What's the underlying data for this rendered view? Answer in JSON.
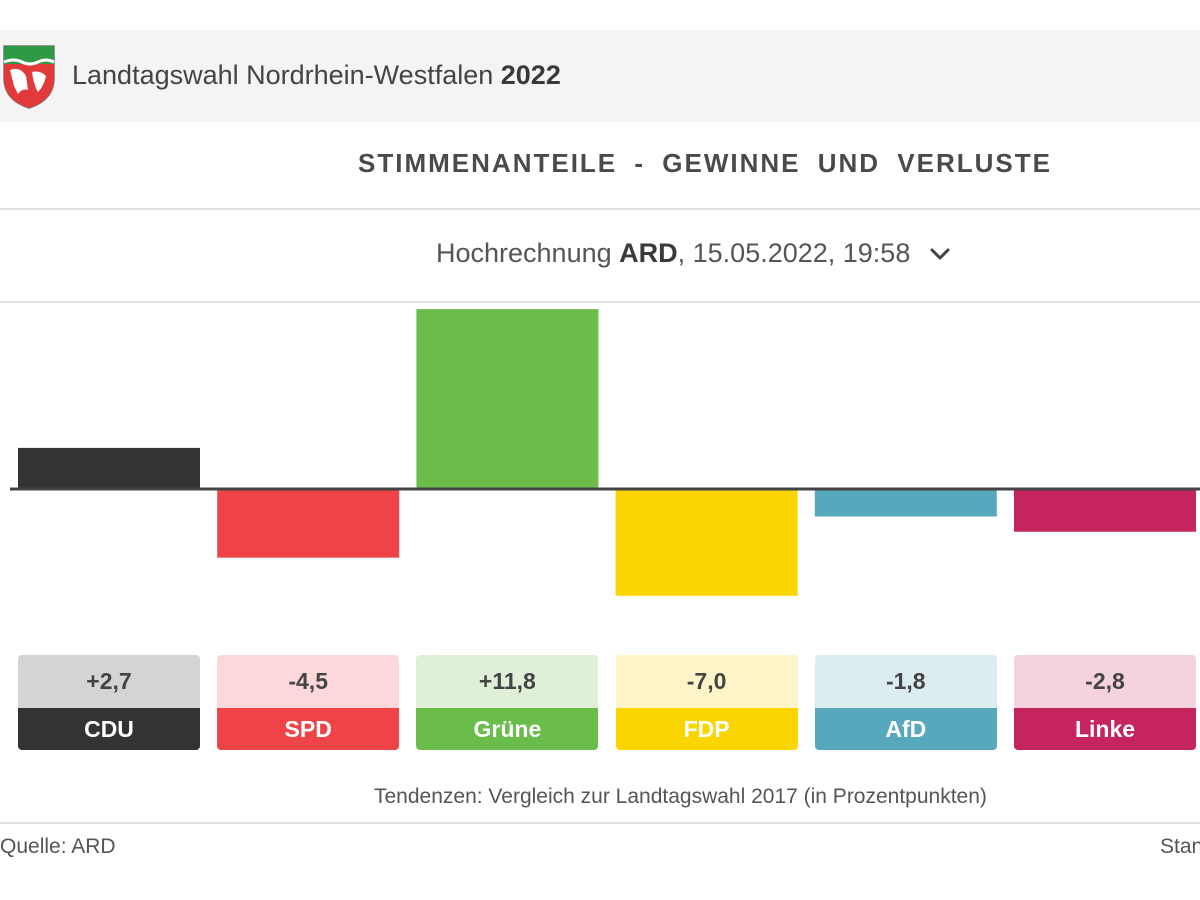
{
  "header": {
    "title": "Landtagswahl Nordrhein-Westfalen",
    "year": "2022",
    "crest_icon": "nrw-coat-of-arms-icon"
  },
  "chart_heading": "STIMMENANTEILE - GEWINNE UND VERLUSTE",
  "selector": {
    "prefix": "Hochrechnung",
    "source": "ARD",
    "datetime": ", 15.05.2022, 19:58"
  },
  "chart_data": {
    "type": "bar",
    "title": "STIMMENANTEILE - GEWINNE UND VERLUSTE",
    "categories": [
      "CDU",
      "SPD",
      "Grüne",
      "FDP",
      "AfD",
      "Linke"
    ],
    "values": [
      2.7,
      -4.5,
      11.8,
      -7.0,
      -1.8,
      -2.8
    ],
    "value_labels": [
      "+2,7",
      "-4,5",
      "+11,8",
      "-7,0",
      "-1,8",
      "-2,8"
    ],
    "colors": [
      "#333333",
      "#ef4447",
      "#6bbd4b",
      "#fad500",
      "#57a8bd",
      "#c6245f"
    ],
    "tile_colors": [
      "#d4d4d4",
      "#fcd8da",
      "#e0f0d8",
      "#fdf5c8",
      "#dcedf2",
      "#f4d2de"
    ],
    "ylim": [
      -9.9,
      12.4
    ],
    "grid": false
  },
  "note": "Tendenzen: Vergleich zur Landtagswahl 2017 (in Prozentpunkten)",
  "footer": {
    "source": "Quelle: ARD",
    "stand": "Stan"
  }
}
